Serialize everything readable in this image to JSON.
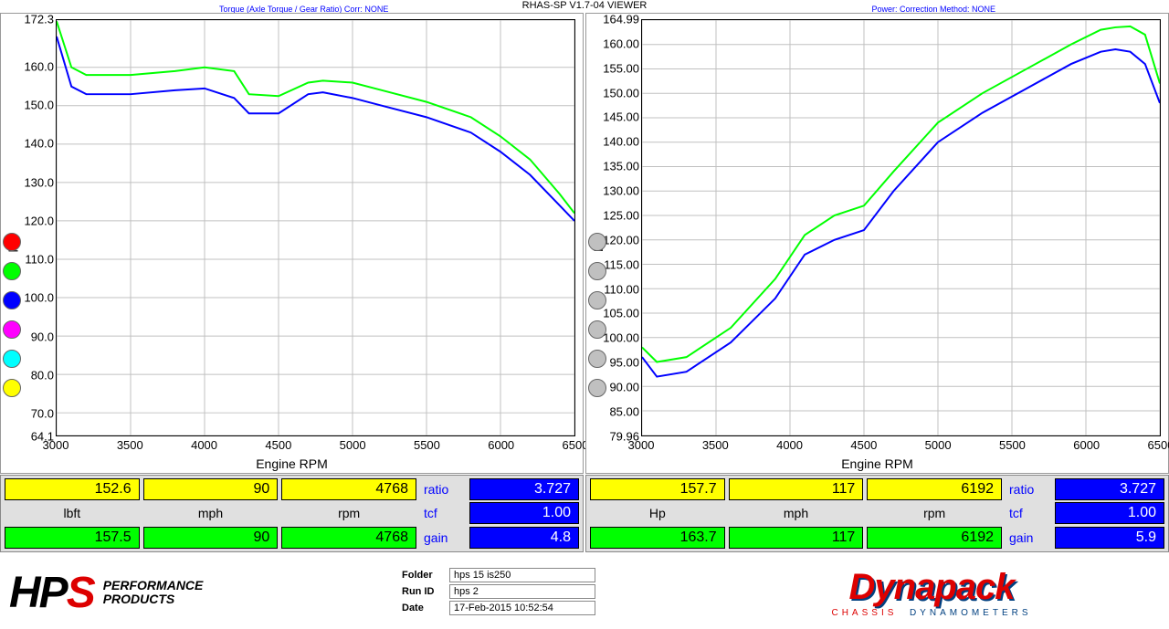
{
  "app_title": "RHAS-SP V1.7-04  VIEWER",
  "hdr_left": "Torque (Axle Torque / Gear Ratio)    Corr: NONE",
  "hdr_right": "Power:    Correction Method: NONE",
  "meta": {
    "folder": "hps 15 is250",
    "run_id": "hps 2",
    "date": "17-Feb-2015  10:52:54"
  },
  "logo_hps": {
    "letters": [
      "H",
      "P",
      "S"
    ],
    "sub1": "PERFORMANCE",
    "sub2": "PRODUCTS"
  },
  "logo_dyna": {
    "name": "Dynapack",
    "sub_red": "CHASSIS",
    "sub_blue": "DYNAMOMETERS"
  },
  "chart_torque": {
    "type": "line",
    "xlabel": "Engine RPM",
    "ylabel": "lbft",
    "xlim": [
      3000,
      6500
    ],
    "ylim": [
      64.1,
      172.3
    ],
    "xticks": [
      3000,
      3500,
      4000,
      4500,
      5000,
      5500,
      6000,
      6500
    ],
    "yticks": [
      64.1,
      70.0,
      80.0,
      90.0,
      100.0,
      110.0,
      120.0,
      130.0,
      140.0,
      150.0,
      160.0,
      172.3
    ],
    "grid_color": "#c0c0c0",
    "bg": "#ffffff",
    "legend_dots": [
      "#ff0000",
      "#00ff00",
      "#0000ff",
      "#ff00ff",
      "#00ffff",
      "#ffff00"
    ],
    "series": [
      {
        "color": "#00ff00",
        "width": 2,
        "x": [
          3000,
          3100,
          3200,
          3500,
          3800,
          4000,
          4200,
          4300,
          4500,
          4700,
          4800,
          5000,
          5200,
          5500,
          5800,
          6000,
          6200,
          6400,
          6500
        ],
        "y": [
          172,
          160,
          158,
          158,
          159,
          160,
          159,
          153,
          152.5,
          156,
          156.5,
          156,
          154,
          151,
          147,
          142,
          136,
          127,
          122
        ]
      },
      {
        "color": "#0000ff",
        "width": 2,
        "x": [
          3000,
          3100,
          3200,
          3500,
          3800,
          4000,
          4200,
          4300,
          4500,
          4700,
          4800,
          5000,
          5200,
          5500,
          5800,
          6000,
          6200,
          6400,
          6500
        ],
        "y": [
          168,
          155,
          153,
          153,
          154,
          154.5,
          152,
          148,
          148,
          153,
          153.5,
          152,
          150,
          147,
          143,
          138,
          132,
          124,
          120
        ]
      }
    ],
    "readout": {
      "yellow": [
        "152.6",
        "90",
        "4768"
      ],
      "units": [
        "lbft",
        "mph",
        "rpm"
      ],
      "green": [
        "157.5",
        "90",
        "4768"
      ],
      "ratio": "3.727",
      "tcf": "1.00",
      "gain": "4.8",
      "ratio_lbl": "ratio",
      "tcf_lbl": "tcf",
      "gain_lbl": "gain"
    }
  },
  "chart_power": {
    "type": "line",
    "xlabel": "Engine RPM",
    "ylabel": "Hp",
    "xlim": [
      3000,
      6500
    ],
    "ylim": [
      79.96,
      164.99
    ],
    "xticks": [
      3000,
      3500,
      4000,
      4500,
      5000,
      5500,
      6000,
      6500
    ],
    "yticks": [
      79.96,
      85.0,
      90.0,
      95.0,
      100.0,
      105.0,
      110.0,
      115.0,
      120.0,
      125.0,
      130.0,
      135.0,
      140.0,
      145.0,
      150.0,
      155.0,
      160.0,
      164.99
    ],
    "grid_color": "#c0c0c0",
    "bg": "#ffffff",
    "legend_dots": [
      "#c0c0c0",
      "#c0c0c0",
      "#c0c0c0",
      "#c0c0c0",
      "#c0c0c0",
      "#c0c0c0"
    ],
    "series": [
      {
        "color": "#00ff00",
        "width": 2,
        "x": [
          3000,
          3100,
          3300,
          3600,
          3900,
          4100,
          4300,
          4500,
          4700,
          5000,
          5300,
          5600,
          5900,
          6100,
          6200,
          6300,
          6400,
          6500
        ],
        "y": [
          98,
          95,
          96,
          102,
          112,
          121,
          125,
          127,
          134,
          144,
          150,
          155,
          160,
          163,
          163.5,
          163.7,
          162,
          152
        ]
      },
      {
        "color": "#0000ff",
        "width": 2,
        "x": [
          3000,
          3100,
          3300,
          3600,
          3900,
          4100,
          4300,
          4500,
          4700,
          5000,
          5300,
          5600,
          5900,
          6100,
          6200,
          6300,
          6400,
          6500
        ],
        "y": [
          96,
          92,
          93,
          99,
          108,
          117,
          120,
          122,
          130,
          140,
          146,
          151,
          156,
          158.5,
          159,
          158.5,
          156,
          148
        ]
      }
    ],
    "readout": {
      "yellow": [
        "157.7",
        "117",
        "6192"
      ],
      "units": [
        "Hp",
        "mph",
        "rpm"
      ],
      "green": [
        "163.7",
        "117",
        "6192"
      ],
      "ratio": "3.727",
      "tcf": "1.00",
      "gain": "5.9",
      "ratio_lbl": "ratio",
      "tcf_lbl": "tcf",
      "gain_lbl": "gain"
    }
  }
}
